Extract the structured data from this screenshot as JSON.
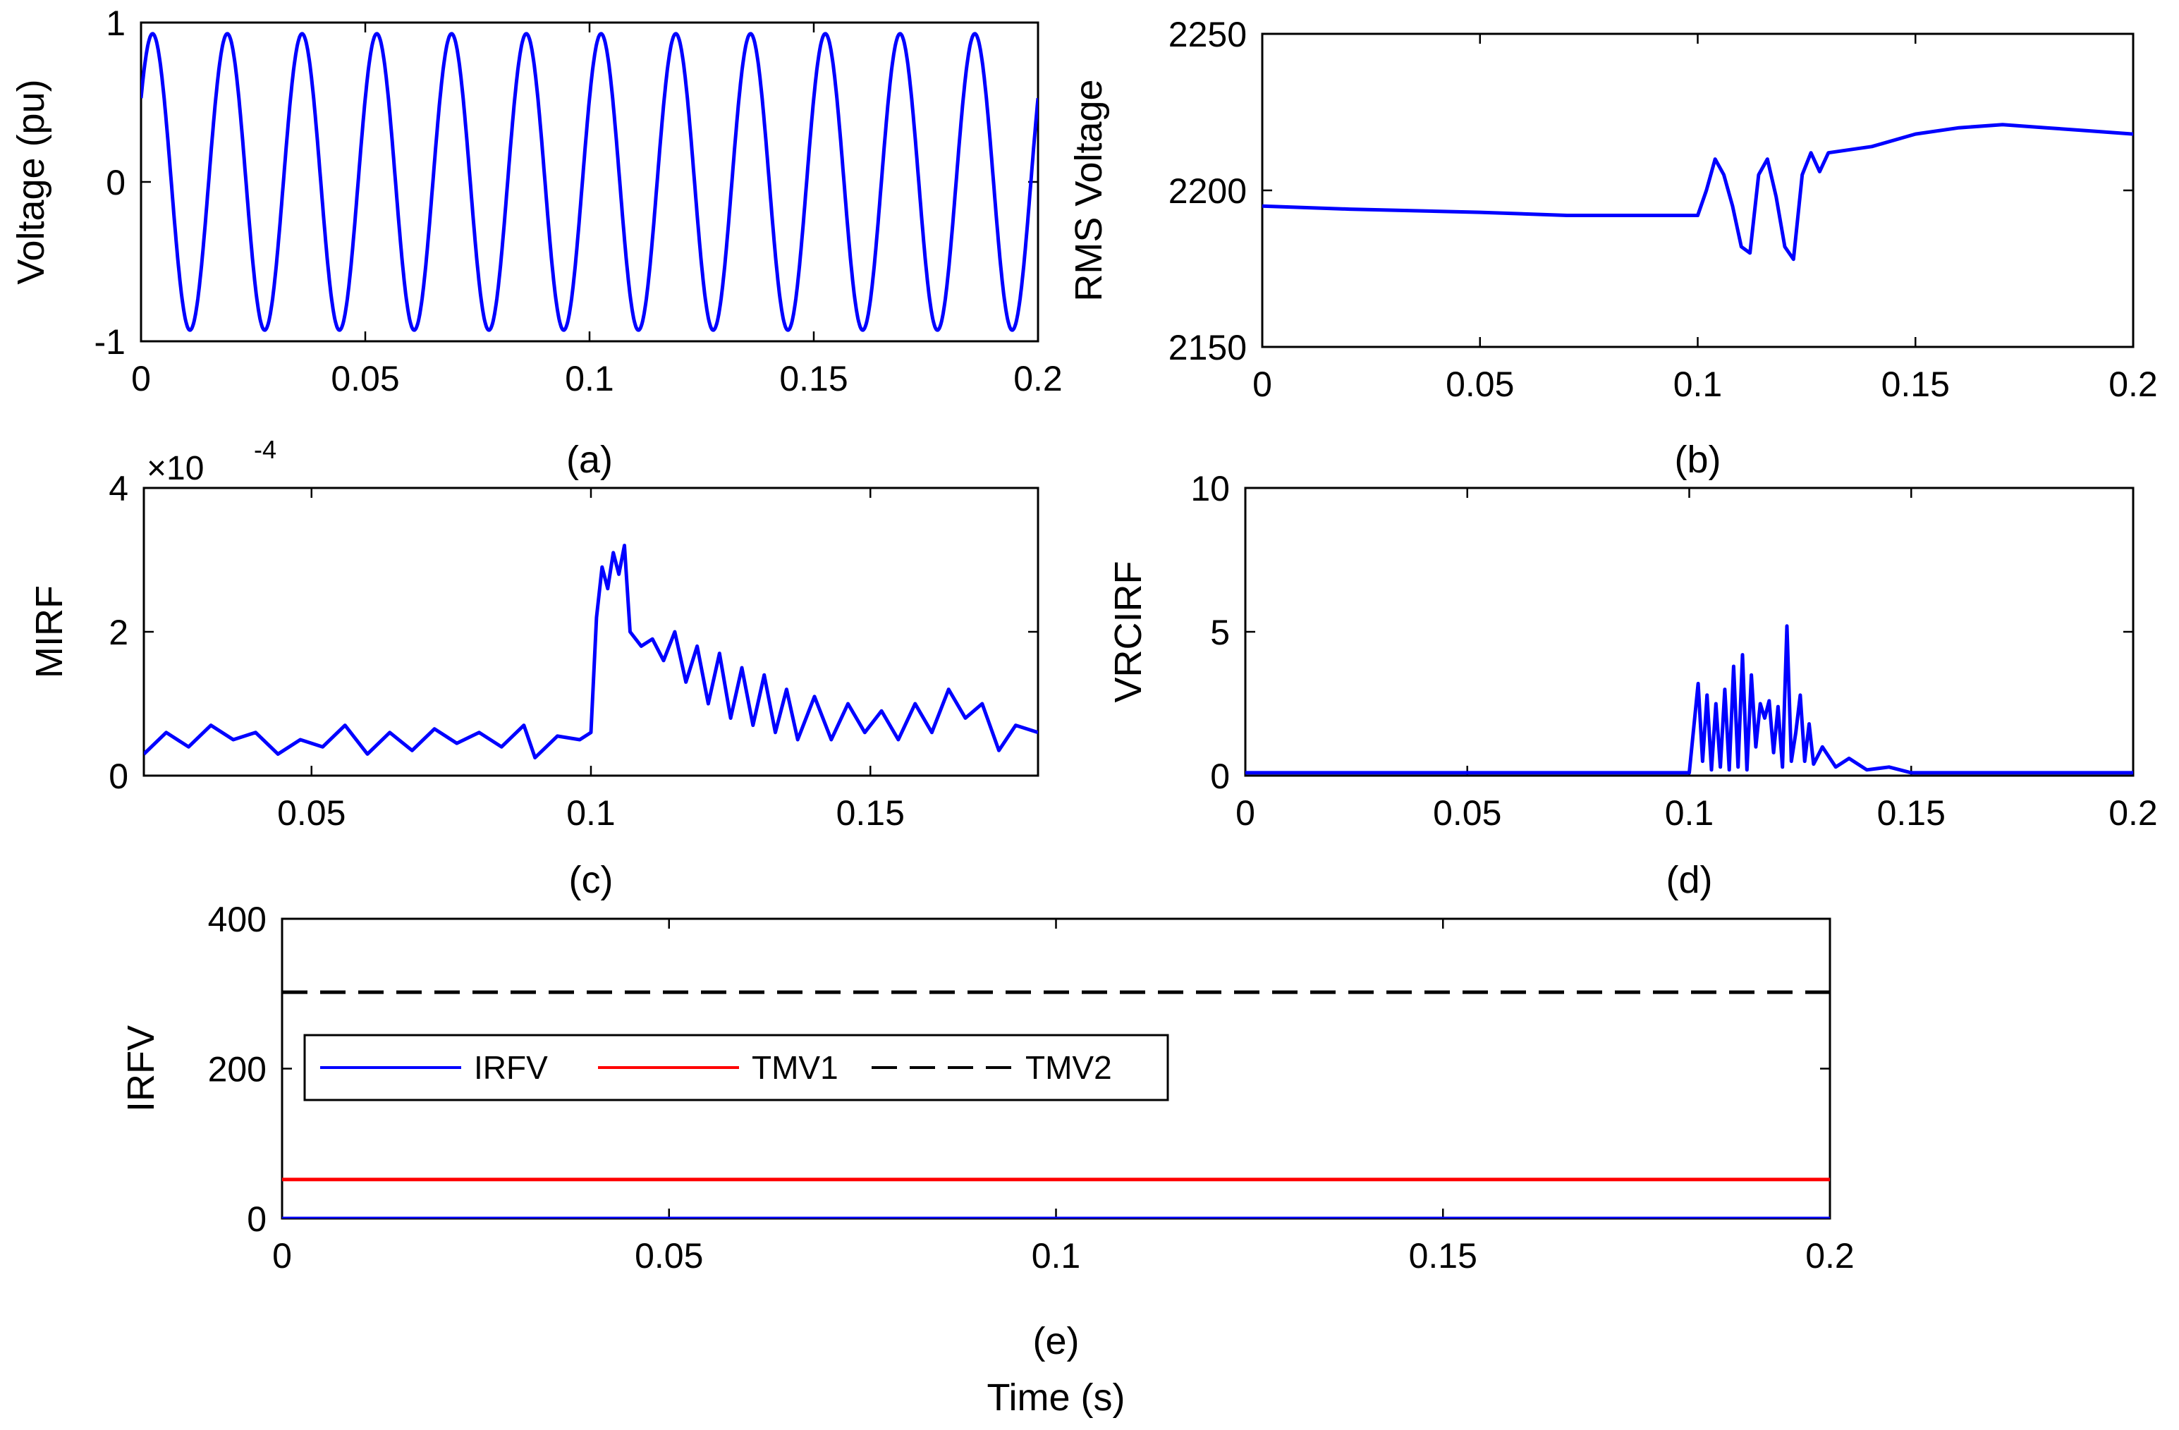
{
  "chart_data": [
    {
      "id": "a",
      "type": "line",
      "caption": "(a)",
      "ylabel": "Voltage (pu)",
      "xlabel": "",
      "xlim": [
        0,
        0.2
      ],
      "ylim": [
        -1,
        1
      ],
      "xticks": [
        0,
        0.05,
        0.1,
        0.15,
        0.2
      ],
      "xtick_labels": [
        "0",
        "0.05",
        "0.1",
        "0.15",
        "0.2"
      ],
      "yticks": [
        -1,
        0,
        1
      ],
      "ytick_labels": [
        "-1",
        "0",
        "1"
      ],
      "series": [
        {
          "name": "voltage",
          "color": "#0000ff",
          "kind": "sine",
          "amplitude": 0.93,
          "frequency_hz": 60,
          "phase_rad": 0.6
        }
      ]
    },
    {
      "id": "b",
      "type": "line",
      "caption": "(b)",
      "ylabel": "RMS Voltage",
      "xlabel": "",
      "xlim": [
        0,
        0.2
      ],
      "ylim": [
        2150,
        2250
      ],
      "xticks": [
        0,
        0.05,
        0.1,
        0.15,
        0.2
      ],
      "xtick_labels": [
        "0",
        "0.05",
        "0.1",
        "0.15",
        "0.2"
      ],
      "yticks": [
        2150,
        2200,
        2250
      ],
      "ytick_labels": [
        "2150",
        "2200",
        "2250"
      ],
      "series": [
        {
          "name": "rms",
          "color": "#0000ff",
          "x": [
            0,
            0.02,
            0.05,
            0.07,
            0.085,
            0.1,
            0.102,
            0.104,
            0.106,
            0.108,
            0.11,
            0.112,
            0.114,
            0.116,
            0.118,
            0.12,
            0.122,
            0.124,
            0.126,
            0.128,
            0.13,
            0.14,
            0.15,
            0.16,
            0.17,
            0.18,
            0.19,
            0.2
          ],
          "y": [
            2195,
            2194,
            2193,
            2192,
            2192,
            2192,
            2200,
            2210,
            2205,
            2195,
            2182,
            2180,
            2205,
            2210,
            2198,
            2182,
            2178,
            2205,
            2212,
            2206,
            2212,
            2214,
            2218,
            2220,
            2221,
            2220,
            2219,
            2218
          ]
        }
      ]
    },
    {
      "id": "c",
      "type": "line",
      "caption": "(c)",
      "ylabel": "MIRF",
      "xlabel": "",
      "exponent_label": "×10",
      "exponent_power": "-4",
      "xlim": [
        0.02,
        0.18
      ],
      "ylim": [
        0,
        4
      ],
      "xticks": [
        0.05,
        0.1,
        0.15
      ],
      "xtick_labels": [
        "0.05",
        "0.1",
        "0.15"
      ],
      "yticks": [
        0,
        2,
        4
      ],
      "ytick_labels": [
        "0",
        "2",
        "4"
      ],
      "series": [
        {
          "name": "mirf",
          "color": "#0000ff",
          "x": [
            0.02,
            0.024,
            0.028,
            0.032,
            0.036,
            0.04,
            0.044,
            0.048,
            0.052,
            0.056,
            0.06,
            0.064,
            0.068,
            0.072,
            0.076,
            0.08,
            0.084,
            0.088,
            0.09,
            0.094,
            0.098,
            0.1,
            0.101,
            0.102,
            0.103,
            0.104,
            0.105,
            0.106,
            0.107,
            0.109,
            0.111,
            0.113,
            0.115,
            0.117,
            0.119,
            0.121,
            0.123,
            0.125,
            0.127,
            0.129,
            0.131,
            0.133,
            0.135,
            0.137,
            0.14,
            0.143,
            0.146,
            0.149,
            0.152,
            0.155,
            0.158,
            0.161,
            0.164,
            0.167,
            0.17,
            0.173,
            0.176,
            0.18
          ],
          "y": [
            0.3,
            0.6,
            0.4,
            0.7,
            0.5,
            0.6,
            0.3,
            0.5,
            0.4,
            0.7,
            0.3,
            0.6,
            0.35,
            0.65,
            0.45,
            0.6,
            0.4,
            0.7,
            0.25,
            0.55,
            0.5,
            0.6,
            2.2,
            2.9,
            2.6,
            3.1,
            2.8,
            3.2,
            2.0,
            1.8,
            1.9,
            1.6,
            2.0,
            1.3,
            1.8,
            1.0,
            1.7,
            0.8,
            1.5,
            0.7,
            1.4,
            0.6,
            1.2,
            0.5,
            1.1,
            0.5,
            1.0,
            0.6,
            0.9,
            0.5,
            1.0,
            0.6,
            1.2,
            0.8,
            1.0,
            0.35,
            0.7,
            0.6
          ]
        }
      ]
    },
    {
      "id": "d",
      "type": "line",
      "caption": "(d)",
      "ylabel": "VRCIRF",
      "xlabel": "",
      "xlim": [
        0,
        0.2
      ],
      "ylim": [
        0,
        10
      ],
      "xticks": [
        0,
        0.05,
        0.1,
        0.15,
        0.2
      ],
      "xtick_labels": [
        "0",
        "0.05",
        "0.1",
        "0.15",
        "0.2"
      ],
      "yticks": [
        0,
        5,
        10
      ],
      "ytick_labels": [
        "0",
        "5",
        "10"
      ],
      "series": [
        {
          "name": "vrcirf",
          "color": "#0000ff",
          "x": [
            0,
            0.02,
            0.05,
            0.08,
            0.1,
            0.102,
            0.103,
            0.104,
            0.105,
            0.106,
            0.107,
            0.108,
            0.109,
            0.11,
            0.111,
            0.112,
            0.113,
            0.114,
            0.115,
            0.116,
            0.117,
            0.118,
            0.119,
            0.12,
            0.121,
            0.122,
            0.123,
            0.124,
            0.125,
            0.126,
            0.127,
            0.128,
            0.13,
            0.133,
            0.136,
            0.14,
            0.145,
            0.15,
            0.2
          ],
          "y": [
            0.1,
            0.1,
            0.1,
            0.1,
            0.1,
            3.2,
            0.5,
            2.8,
            0.2,
            2.5,
            0.3,
            3.0,
            0.2,
            3.8,
            0.3,
            4.2,
            0.2,
            3.5,
            1.0,
            2.5,
            2.0,
            2.6,
            0.8,
            2.4,
            0.3,
            5.2,
            0.5,
            1.5,
            2.8,
            0.5,
            1.8,
            0.4,
            1.0,
            0.3,
            0.6,
            0.2,
            0.3,
            0.1,
            0.1
          ]
        }
      ]
    },
    {
      "id": "e",
      "type": "line",
      "caption": "(e)",
      "ylabel": "IRFV",
      "xlabel": "Time (s)",
      "xlim": [
        0,
        0.2
      ],
      "ylim": [
        0,
        400
      ],
      "xticks": [
        0,
        0.05,
        0.1,
        0.15,
        0.2
      ],
      "xtick_labels": [
        "0",
        "0.05",
        "0.1",
        "0.15",
        "0.2"
      ],
      "yticks": [
        0,
        200,
        400
      ],
      "ytick_labels": [
        "0",
        "200",
        "400"
      ],
      "legend": {
        "placement": "center-left",
        "orientation": "horizontal"
      },
      "series": [
        {
          "name": "IRFV",
          "color": "#0000ff",
          "style": "solid",
          "x": [
            0,
            0.2
          ],
          "y": [
            0,
            0
          ]
        },
        {
          "name": "TMV1",
          "color": "#ff0000",
          "style": "solid",
          "x": [
            0,
            0.2
          ],
          "y": [
            52,
            52
          ]
        },
        {
          "name": "TMV2",
          "color": "#000000",
          "style": "dashed",
          "x": [
            0,
            0.2
          ],
          "y": [
            302,
            302
          ]
        }
      ]
    }
  ]
}
